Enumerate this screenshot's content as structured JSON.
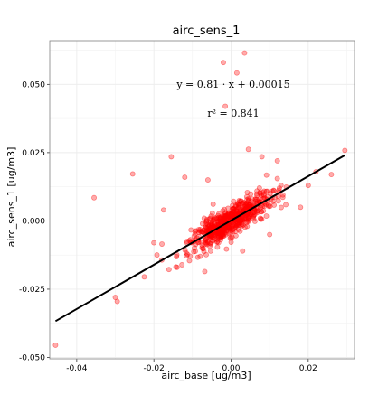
{
  "chart_data": {
    "type": "scatter",
    "title": "airc_sens_1",
    "xlabel": "airc_base  [ug/m3]",
    "ylabel": "airc_sens_1  [ug/m3]",
    "xlim": [
      -0.047,
      0.032
    ],
    "ylim": [
      -0.0505,
      0.066
    ],
    "x_ticks": [
      -0.04,
      -0.02,
      0.0,
      0.02
    ],
    "x_tick_labels": [
      "-0.04",
      "-0.02",
      "0.00",
      "0.02"
    ],
    "y_ticks": [
      -0.05,
      -0.025,
      0.0,
      0.025,
      0.05
    ],
    "y_tick_labels": [
      "-0.050",
      "-0.025",
      "0.000",
      "0.025",
      "0.050"
    ],
    "grid": true,
    "point_color": "#ff0000",
    "line_color": "#000000",
    "fit": {
      "slope": 0.81,
      "intercept": 0.00015,
      "r2": 0.841,
      "x_range": [
        -0.0455,
        0.0295
      ]
    },
    "annotations": {
      "equation": "y = 0.81 · x + 0.00015",
      "r2": "r² = 0.841"
    },
    "outliers": [
      [
        -0.0455,
        -0.0455
      ],
      [
        -0.0355,
        0.0085
      ],
      [
        -0.0295,
        -0.0295
      ],
      [
        -0.0255,
        0.0172
      ],
      [
        -0.0155,
        0.0235
      ],
      [
        -0.0225,
        -0.0205
      ],
      [
        -0.0175,
        0.004
      ],
      [
        -0.002,
        0.058
      ],
      [
        0.0015,
        0.0542
      ],
      [
        0.0035,
        0.0615
      ],
      [
        -0.0015,
        0.042
      ],
      [
        0.0045,
        0.0262
      ],
      [
        0.008,
        0.0235
      ],
      [
        0.0295,
        0.0258
      ],
      [
        0.026,
        0.017
      ],
      [
        -0.01,
        -0.008
      ],
      [
        0.01,
        -0.005
      ],
      [
        -0.012,
        0.016
      ],
      [
        0.012,
        0.022
      ],
      [
        -0.006,
        0.015
      ],
      [
        0.003,
        -0.011
      ],
      [
        -0.008,
        -0.013
      ],
      [
        0.018,
        0.005
      ],
      [
        -0.02,
        -0.008
      ],
      [
        0.02,
        0.013
      ],
      [
        -0.03,
        -0.028
      ],
      [
        0.022,
        0.018
      ],
      [
        -0.014,
        -0.017
      ]
    ],
    "cluster": {
      "count": 650,
      "x_mean": 0.0,
      "x_sd": 0.0055,
      "noise_sd": 0.0028,
      "seed": 7
    }
  }
}
